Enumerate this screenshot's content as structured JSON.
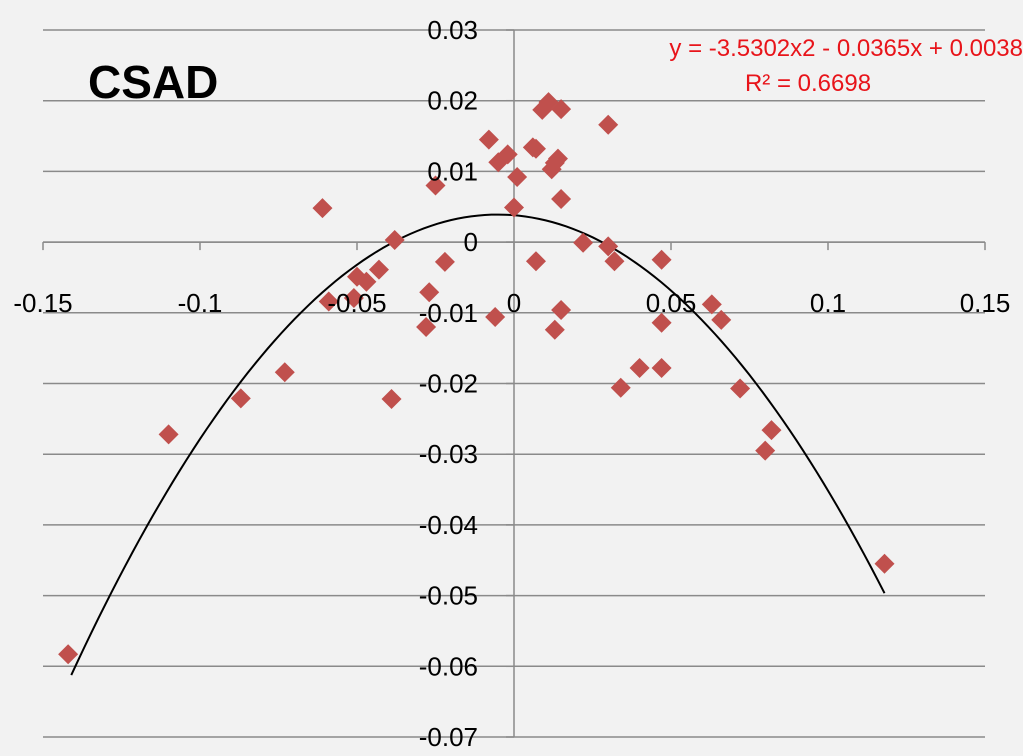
{
  "chart_data": {
    "type": "scatter",
    "title": "CSAD",
    "xlabel": "",
    "ylabel": "",
    "xlim": [
      -0.15,
      0.15
    ],
    "ylim": [
      -0.07,
      0.03
    ],
    "x_ticks": [
      -0.15,
      -0.1,
      -0.05,
      0,
      0.05,
      0.1,
      0.15
    ],
    "y_ticks": [
      0.03,
      0.02,
      0.01,
      0,
      -0.01,
      -0.02,
      -0.03,
      -0.04,
      -0.05,
      -0.06,
      -0.07
    ],
    "x_tick_labels": [
      "-0.15",
      "-0.1",
      "-0.05",
      "0",
      "0.05",
      "0.1",
      "0.15"
    ],
    "y_tick_labels": [
      "0.03",
      "0.02",
      "0.01",
      "0",
      "-0.01",
      "-0.02",
      "-0.03",
      "-0.04",
      "-0.05",
      "-0.06",
      "-0.07"
    ],
    "grid": "horizontal",
    "series": [
      {
        "marker": "diamond",
        "color": "#c0504d",
        "points": [
          [
            -0.142,
            -0.0583
          ],
          [
            -0.11,
            -0.0272
          ],
          [
            -0.087,
            -0.0221
          ],
          [
            -0.073,
            -0.0184
          ],
          [
            -0.061,
            0.0048
          ],
          [
            -0.059,
            -0.0084
          ],
          [
            -0.051,
            -0.0079
          ],
          [
            -0.05,
            -0.0049
          ],
          [
            -0.047,
            -0.0056
          ],
          [
            -0.043,
            -0.0039
          ],
          [
            -0.039,
            -0.0222
          ],
          [
            -0.038,
            0.0003
          ],
          [
            -0.028,
            -0.012
          ],
          [
            -0.027,
            -0.0071
          ],
          [
            -0.025,
            0.008
          ],
          [
            -0.022,
            -0.0028
          ],
          [
            -0.008,
            0.0145
          ],
          [
            -0.006,
            -0.0106
          ],
          [
            -0.005,
            0.0113
          ],
          [
            -0.002,
            0.0124
          ],
          [
            0.0,
            0.0049
          ],
          [
            0.001,
            0.0092
          ],
          [
            0.006,
            0.0134
          ],
          [
            0.007,
            0.0132
          ],
          [
            0.007,
            -0.0027
          ],
          [
            0.009,
            0.0187
          ],
          [
            0.011,
            0.0198
          ],
          [
            0.012,
            0.0103
          ],
          [
            0.013,
            0.0112
          ],
          [
            0.013,
            -0.0124
          ],
          [
            0.014,
            0.0118
          ],
          [
            0.015,
            0.0188
          ],
          [
            0.015,
            0.0061
          ],
          [
            0.015,
            -0.0096
          ],
          [
            0.022,
            -0.0001
          ],
          [
            0.03,
            0.0166
          ],
          [
            0.03,
            -0.0006
          ],
          [
            0.032,
            -0.0027
          ],
          [
            0.034,
            -0.0206
          ],
          [
            0.04,
            -0.0178
          ],
          [
            0.047,
            -0.0178
          ],
          [
            0.047,
            -0.0114
          ],
          [
            0.047,
            -0.0025
          ],
          [
            0.063,
            -0.0088
          ],
          [
            0.066,
            -0.011
          ],
          [
            0.072,
            -0.0207
          ],
          [
            0.08,
            -0.0295
          ],
          [
            0.082,
            -0.0266
          ],
          [
            0.118,
            -0.0455
          ]
        ]
      }
    ],
    "trendline": {
      "type": "polynomial",
      "coefficients": [
        -3.5302,
        -0.0365,
        0.0038
      ],
      "x_range": [
        -0.141,
        0.118
      ],
      "color": "#000000",
      "equation": "y = -3.5302x2 - 0.0365x + 0.0038",
      "r2_label": "R² = 0.6698",
      "label_color": "#e8141a"
    }
  }
}
